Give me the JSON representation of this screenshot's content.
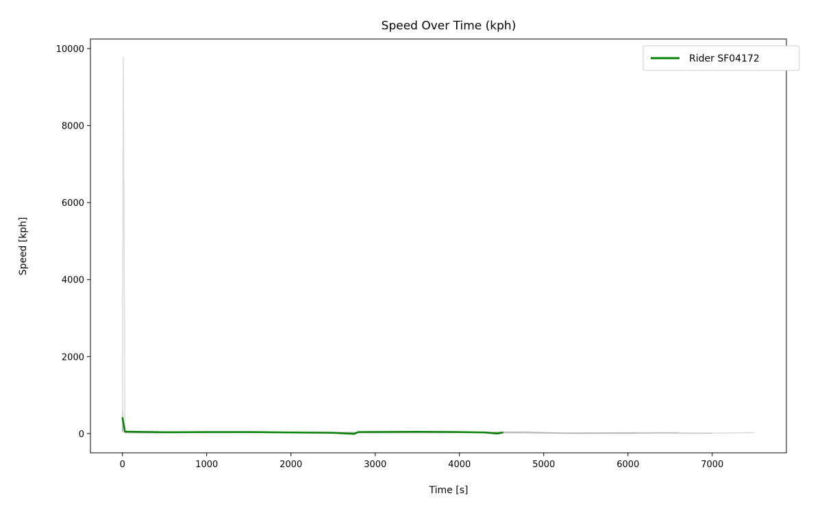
{
  "chart_data": {
    "type": "line",
    "title": "Speed Over Time (kph)",
    "xlabel": "Time [s]",
    "ylabel": "Speed [kph]",
    "xlim": [
      -380,
      7880
    ],
    "ylim": [
      -500,
      10250
    ],
    "x_ticks": [
      0,
      1000,
      2000,
      3000,
      4000,
      5000,
      6000,
      7000
    ],
    "y_ticks": [
      0,
      2000,
      4000,
      6000,
      8000,
      10000
    ],
    "grid": false,
    "legend_position": "top-right",
    "highlight_color": "#008000",
    "background_series_color": "#999999",
    "background_series": [
      {
        "points": [
          [
            0,
            30
          ],
          [
            10,
            9780
          ],
          [
            30,
            20
          ],
          [
            200,
            15
          ],
          [
            1500,
            25
          ],
          [
            3000,
            20
          ],
          [
            4500,
            30
          ],
          [
            5500,
            5
          ],
          [
            6300,
            10
          ],
          [
            6800,
            5
          ],
          [
            7500,
            25
          ]
        ]
      },
      {
        "points": [
          [
            0,
            50
          ],
          [
            5,
            580
          ],
          [
            20,
            30
          ],
          [
            300,
            20
          ],
          [
            1000,
            40
          ],
          [
            2000,
            30
          ],
          [
            2500,
            20
          ],
          [
            3500,
            35
          ],
          [
            4500,
            20
          ],
          [
            5000,
            10
          ],
          [
            5500,
            15
          ],
          [
            6000,
            5
          ],
          [
            6600,
            30
          ]
        ]
      },
      {
        "points": [
          [
            0,
            60
          ],
          [
            10,
            350
          ],
          [
            30,
            25
          ],
          [
            800,
            30
          ],
          [
            1800,
            20
          ],
          [
            2800,
            35
          ],
          [
            3800,
            25
          ],
          [
            4600,
            40
          ],
          [
            5200,
            10
          ],
          [
            5800,
            20
          ],
          [
            6300,
            25
          ],
          [
            7000,
            10
          ]
        ]
      },
      {
        "points": [
          [
            0,
            40
          ],
          [
            10,
            200
          ],
          [
            40,
            30
          ],
          [
            1200,
            25
          ],
          [
            2200,
            35
          ],
          [
            3200,
            20
          ],
          [
            4200,
            30
          ],
          [
            4800,
            45
          ],
          [
            5300,
            5
          ],
          [
            6100,
            20
          ]
        ]
      }
    ],
    "series": [
      {
        "name": "Rider SF04172",
        "points": [
          [
            0,
            420
          ],
          [
            30,
            50
          ],
          [
            500,
            35
          ],
          [
            1000,
            40
          ],
          [
            1500,
            40
          ],
          [
            2000,
            30
          ],
          [
            2500,
            20
          ],
          [
            2750,
            -10
          ],
          [
            2800,
            40
          ],
          [
            3500,
            45
          ],
          [
            4000,
            40
          ],
          [
            4300,
            30
          ],
          [
            4450,
            0
          ],
          [
            4520,
            30
          ]
        ]
      }
    ]
  }
}
